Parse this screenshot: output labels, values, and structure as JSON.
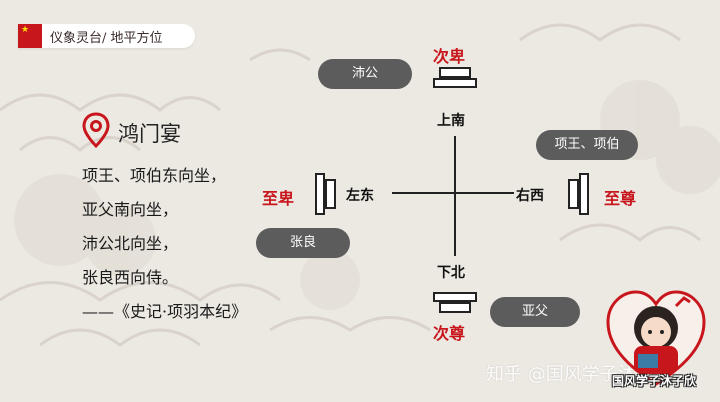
{
  "header": {
    "title": "仪象灵台/ 地平方位"
  },
  "event": {
    "title": "鸿门宴",
    "quote_lines": [
      "项王、项伯东向坐，",
      "亚父南向坐，",
      "沛公北向坐，",
      "张良西向侍。",
      "——《史记·项羽本纪》"
    ]
  },
  "diagram": {
    "north_side": {
      "person": "沛公",
      "rank": "次卑",
      "direction": "上南"
    },
    "south_side": {
      "person": "亚父",
      "rank": "次尊",
      "direction": "下北"
    },
    "west_side": {
      "person": "张良",
      "rank": "至卑",
      "direction": "左东"
    },
    "east_side": {
      "person": "项王、项伯",
      "rank": "至尊",
      "direction": "右西"
    }
  },
  "footer": {
    "watermark": "知乎 @国风学子沐子欣",
    "avatar_caption": "国风学子沐子欣"
  },
  "colors": {
    "accent_red": "#c8161d",
    "pill_gray": "#5c5c5c",
    "background": "#ece8e2"
  },
  "icons": {
    "location": "location-pin-icon",
    "flag": "china-flag-icon"
  }
}
